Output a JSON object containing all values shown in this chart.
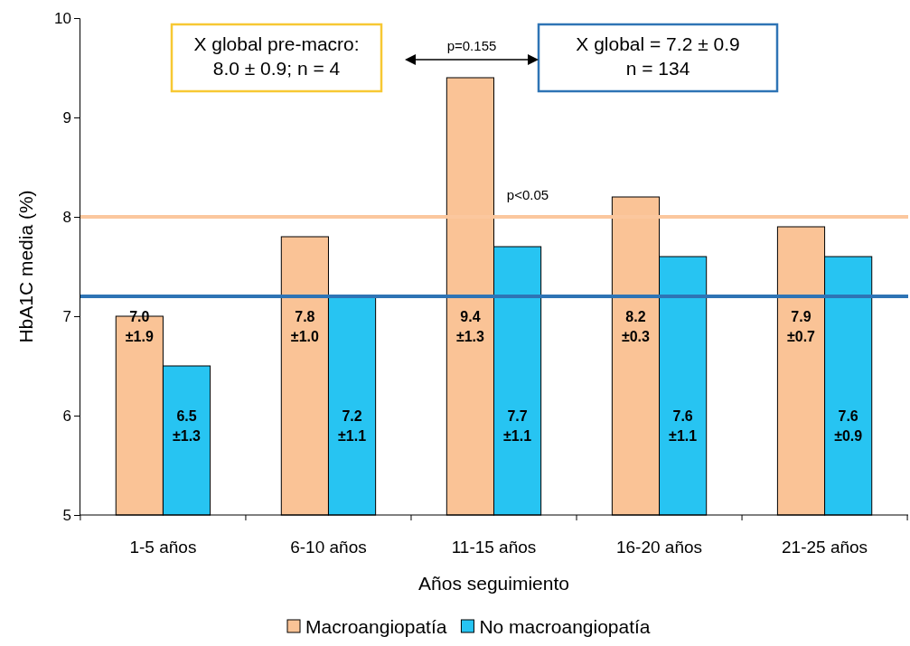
{
  "chart_data": {
    "type": "bar",
    "xlabel": "Años seguimiento",
    "ylabel": "HbA1C media (%)",
    "categories": [
      "1-5 años",
      "6-10 años",
      "11-15 años",
      "16-20 años",
      "21-25 años"
    ],
    "series": [
      {
        "name": "Macroangiopatía",
        "color": "#fac396",
        "values": [
          7.0,
          7.8,
          9.4,
          8.2,
          7.9
        ],
        "value_labels": [
          "7.0\n±1.9",
          "7.8\n±1.0",
          "9.4\n±1.3",
          "8.2\n±0.3",
          "7.9\n±0.7"
        ]
      },
      {
        "name": "No macroangiopatía",
        "color": "#27c4f2",
        "values": [
          6.5,
          7.2,
          7.7,
          7.6,
          7.6
        ],
        "value_labels": [
          "6.5\n±1.3",
          "7.2\n±1.1",
          "7.7\n±1.1",
          "7.6\n±1.1",
          "7.6\n±0.9"
        ]
      }
    ],
    "ylim": [
      5,
      10
    ],
    "yticks": [
      5,
      6,
      7,
      8,
      9,
      10
    ],
    "grid": false,
    "legend": "bottom",
    "ref_lines": [
      {
        "axis": "y",
        "value": 8.0,
        "color": "#fbc79e"
      },
      {
        "axis": "y",
        "value": 7.2,
        "color": "#2e74b5"
      }
    ],
    "annotations": [
      "X global pre-macro:\n8.0 ± 0.9; n = 4",
      "X global = 7.2 ± 0.9\nn = 134",
      "p=0.155",
      "p<0.05"
    ]
  }
}
